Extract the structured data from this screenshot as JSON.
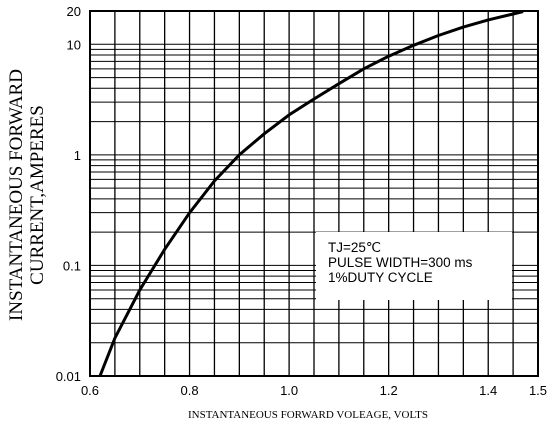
{
  "chart_data": {
    "type": "line",
    "title": "",
    "xlabel": "INSTANTANEOUS FORWARD VOLEAGE, VOLTS",
    "ylabel_lines": [
      "INSTANTANEOUS FORWARD",
      "CURRENT,AMPERES"
    ],
    "xlim": [
      0.6,
      1.5
    ],
    "ylim": [
      0.01,
      20
    ],
    "y_scale": "log",
    "grid": true,
    "x_ticks": [
      {
        "value": 0.6,
        "label": "0.6"
      },
      {
        "value": 0.8,
        "label": "0.8"
      },
      {
        "value": 1.0,
        "label": "1.0"
      },
      {
        "value": 1.2,
        "label": "1.2"
      },
      {
        "value": 1.4,
        "label": "1.4"
      },
      {
        "value": 1.5,
        "label": "1.5"
      }
    ],
    "y_ticks": [
      {
        "value": 0.01,
        "label": "0.01"
      },
      {
        "value": 0.1,
        "label": "0.1"
      },
      {
        "value": 1,
        "label": "1"
      },
      {
        "value": 10,
        "label": "10"
      },
      {
        "value": 20,
        "label": "20"
      }
    ],
    "series": [
      {
        "x": [
          0.62,
          0.65,
          0.7,
          0.75,
          0.8,
          0.85,
          0.9,
          0.95,
          1.0,
          1.05,
          1.1,
          1.15,
          1.2,
          1.25,
          1.3,
          1.35,
          1.4,
          1.45,
          1.47
        ],
        "y": [
          0.01,
          0.022,
          0.06,
          0.14,
          0.3,
          0.58,
          1.0,
          1.55,
          2.3,
          3.2,
          4.4,
          6.0,
          7.8,
          9.8,
          12.0,
          14.3,
          16.6,
          18.8,
          19.8
        ]
      }
    ],
    "annotation_lines": [
      "TJ=25℃",
      "PULSE WIDTH=300 ms",
      "1%DUTY CYCLE"
    ]
  }
}
